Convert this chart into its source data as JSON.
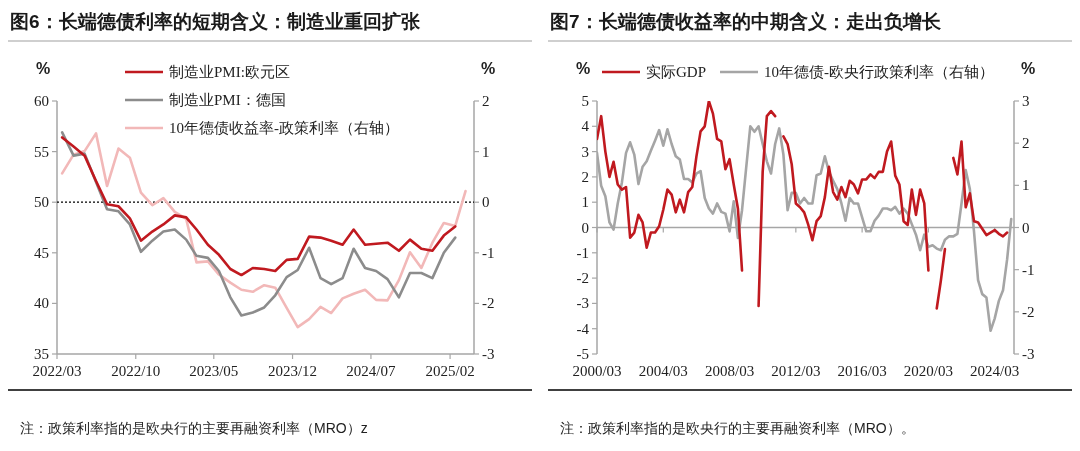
{
  "chart_data": [
    {
      "type": "line",
      "title": "图6：长端德债利率的短期含义：制造业重回扩张",
      "ylabel": "%",
      "y2label": "%",
      "legend": "top",
      "x": [
        "2022-03-15",
        "2022-04-15",
        "2022-05-15",
        "2022-06-15",
        "2022-07-15",
        "2022-08-15",
        "2022-09-15",
        "2022-10-15",
        "2022-11-15",
        "2022-12-15",
        "2023-01-15",
        "2023-02-15",
        "2023-03-15",
        "2023-04-15",
        "2023-05-15",
        "2023-06-15",
        "2023-07-15",
        "2023-08-15",
        "2023-09-15",
        "2023-10-15",
        "2023-11-15",
        "2023-12-15",
        "2024-01-15",
        "2024-02-15",
        "2024-03-15",
        "2024-04-15",
        "2024-05-15",
        "2024-06-15",
        "2024-07-15",
        "2024-08-15",
        "2024-09-15",
        "2024-10-15",
        "2024-11-15",
        "2024-12-15",
        "2025-01-15",
        "2025-02-15",
        "2025-03-15"
      ],
      "xlim": [
        "2022-03-01",
        "2025-04-07"
      ],
      "xticks": [
        {
          "value": "2022-03-01",
          "label": "2022/03"
        },
        {
          "value": "2022-10-01",
          "label": "2022/10"
        },
        {
          "value": "2023-05-01",
          "label": "2023/05"
        },
        {
          "value": "2023-12-01",
          "label": "2023/12"
        },
        {
          "value": "2024-07-01",
          "label": "2024/07"
        },
        {
          "value": "2025-02-01",
          "label": "2025/02"
        }
      ],
      "ylim": [
        35,
        60
      ],
      "yticks": [
        35,
        40,
        45,
        50,
        55,
        60
      ],
      "y2lim": [
        -3,
        2
      ],
      "y2ticks": [
        {
          "value": -3,
          "label": "-3"
        },
        {
          "value": -2,
          "label": "-2"
        },
        {
          "value": -1,
          "label": "-1"
        },
        0,
        1,
        2
      ],
      "series": [
        {
          "name": "制造业PMI:欧元区",
          "color": "#c0191f",
          "values": [
            56.4,
            55.5,
            54.6,
            52.1,
            49.8,
            49.6,
            48.4,
            46.2,
            47.1,
            47.8,
            48.7,
            48.5,
            47.3,
            45.8,
            44.8,
            43.4,
            42.8,
            43.5,
            43.4,
            43.2,
            44.3,
            44.4,
            46.6,
            46.5,
            46.2,
            45.8,
            47.3,
            45.8,
            45.9,
            46.0,
            45.2,
            46.3,
            45.4,
            45.2,
            46.7,
            47.6,
            null
          ]
        },
        {
          "name": "制造业PMI：德国",
          "color": "#8c8c8c",
          "values": [
            56.9,
            54.6,
            54.8,
            52.0,
            49.3,
            49.1,
            47.8,
            45.1,
            46.2,
            47.1,
            47.3,
            46.3,
            44.7,
            44.5,
            43.2,
            40.6,
            38.8,
            39.1,
            39.6,
            40.8,
            42.6,
            43.3,
            45.5,
            42.5,
            41.9,
            42.5,
            45.4,
            43.5,
            43.2,
            42.4,
            40.6,
            43.0,
            43.0,
            42.5,
            45.0,
            46.5,
            null
          ]
        },
        {
          "name": "10年德债收益率-政策利率（右轴）",
          "color": "#f2b8b8",
          "axis": "y2",
          "values": [
            0.57,
            0.94,
            1.01,
            1.36,
            0.32,
            1.06,
            0.88,
            0.19,
            -0.06,
            0.08,
            -0.19,
            -0.33,
            -1.19,
            -1.17,
            -1.43,
            -1.59,
            -1.73,
            -1.77,
            -1.64,
            -1.69,
            -2.09,
            -2.47,
            -2.31,
            -2.07,
            -2.19,
            -1.9,
            -1.81,
            -1.73,
            -1.93,
            -1.94,
            -1.54,
            -0.99,
            -1.3,
            -0.8,
            -0.41,
            -0.47,
            0.22
          ]
        }
      ],
      "ref_lines": [
        {
          "axis": "y2",
          "value": 0,
          "color": "#000000",
          "line_style": "dotted"
        }
      ],
      "annotations": [
        "注：政策利率指的是欧央行的主要再融资利率（MRO）z"
      ]
    },
    {
      "type": "line",
      "title": "图7：长端德债收益率的中期含义：走出负增长",
      "ylabel": "%",
      "y2label": "%",
      "legend": "top",
      "x": [
        "2000-03",
        "2000-06",
        "2000-09",
        "2000-12",
        "2001-03",
        "2001-06",
        "2001-09",
        "2001-12",
        "2002-03",
        "2002-06",
        "2002-09",
        "2002-12",
        "2003-03",
        "2003-06",
        "2003-09",
        "2003-12",
        "2004-03",
        "2004-06",
        "2004-09",
        "2004-12",
        "2005-03",
        "2005-06",
        "2005-09",
        "2005-12",
        "2006-03",
        "2006-06",
        "2006-09",
        "2006-12",
        "2007-03",
        "2007-06",
        "2007-09",
        "2007-12",
        "2008-03",
        "2008-06",
        "2008-09",
        "2008-12",
        "2009-03",
        "2009-06",
        "2009-09",
        "2009-12",
        "2010-03",
        "2010-06",
        "2010-09",
        "2010-12",
        "2011-03",
        "2011-06",
        "2011-09",
        "2011-12",
        "2012-03",
        "2012-06",
        "2012-09",
        "2012-12",
        "2013-03",
        "2013-06",
        "2013-09",
        "2013-12",
        "2014-03",
        "2014-06",
        "2014-09",
        "2014-12",
        "2015-03",
        "2015-06",
        "2015-09",
        "2015-12",
        "2016-03",
        "2016-06",
        "2016-09",
        "2016-12",
        "2017-03",
        "2017-06",
        "2017-09",
        "2017-12",
        "2018-03",
        "2018-06",
        "2018-09",
        "2018-12",
        "2019-03",
        "2019-06",
        "2019-09",
        "2019-12",
        "2020-03",
        "2020-06",
        "2020-09",
        "2020-12",
        "2021-03",
        "2021-06",
        "2021-09",
        "2021-12",
        "2022-03",
        "2022-06",
        "2022-09",
        "2022-12",
        "2023-03",
        "2023-06",
        "2023-09",
        "2023-12",
        "2024-03",
        "2024-06",
        "2024-09",
        "2024-12",
        "2025-03"
      ],
      "xlim": [
        "2000-03",
        "2025-05"
      ],
      "xticks": [
        {
          "value": "2000-03",
          "label": "2000/03"
        },
        {
          "value": "2004-03",
          "label": "2004/03"
        },
        {
          "value": "2008-03",
          "label": "2008/03"
        },
        {
          "value": "2012-03",
          "label": "2012/03"
        },
        {
          "value": "2016-03",
          "label": "2016/03"
        },
        {
          "value": "2020-03",
          "label": "2020/03"
        },
        {
          "value": "2024-03",
          "label": "2024/03"
        }
      ],
      "ylim": [
        -5,
        5
      ],
      "yticks": [
        {
          "value": -5,
          "label": "-5"
        },
        {
          "value": -4,
          "label": "-4"
        },
        {
          "value": -3,
          "label": "-3"
        },
        {
          "value": -2,
          "label": "-2"
        },
        {
          "value": -1,
          "label": "-1"
        },
        0,
        1,
        2,
        3,
        4,
        5
      ],
      "y2lim": [
        -3,
        3
      ],
      "y2ticks": [
        {
          "value": -3,
          "label": "-3"
        },
        {
          "value": -2,
          "label": "-2"
        },
        {
          "value": -1,
          "label": "-1"
        },
        0,
        1,
        2,
        3
      ],
      "series": [
        {
          "name": "实际GDP",
          "color": "#c0191f",
          "values": [
            3.5,
            4.4,
            3.0,
            2.0,
            2.6,
            1.7,
            1.5,
            1.6,
            -0.4,
            -0.2,
            0.5,
            0.2,
            -0.8,
            -0.2,
            -0.2,
            0.05,
            0.7,
            1.5,
            1.3,
            0.6,
            1.1,
            0.6,
            1.4,
            1.6,
            2.8,
            3.8,
            4.0,
            5.0,
            4.5,
            3.5,
            3.4,
            2.3,
            2.7,
            1.7,
            0.75,
            -1.7,
            null,
            null,
            null,
            -3.1,
            2.2,
            4.4,
            4.6,
            4.4,
            null,
            3.6,
            3.3,
            2.5,
            0.95,
            0.8,
            0.6,
            0.1,
            -0.5,
            0.25,
            0.45,
            1.2,
            2.4,
            1.4,
            1.1,
            1.6,
            1.2,
            1.85,
            1.7,
            1.35,
            1.9,
            1.9,
            2.1,
            1.95,
            2.2,
            2.2,
            3.0,
            3.4,
            2.05,
            1.7,
            0.25,
            0.1,
            1.5,
            0.5,
            1.5,
            0.95,
            -1.7,
            null,
            -3.2,
            -2.1,
            -0.85,
            null,
            2.75,
            2.1,
            3.4,
            0.8,
            1.35,
            0.25,
            0.2,
            -0.05,
            -0.3,
            -0.2,
            -0.1,
            -0.25,
            -0.35,
            -0.2,
            null
          ]
        },
        {
          "name": "10年德债-欧央行政策利率（右轴）",
          "color": "#a5a5a5",
          "axis": "y2",
          "values": [
            1.77,
            0.99,
            0.74,
            0.12,
            -0.05,
            0.57,
            1.07,
            1.77,
            2.02,
            1.73,
            1.03,
            1.44,
            1.57,
            1.82,
            2.06,
            2.31,
            1.94,
            2.33,
            1.98,
            1.69,
            1.61,
            1.15,
            1.15,
            1.07,
            1.28,
            1.34,
            0.7,
            0.45,
            0.33,
            0.57,
            0.37,
            0.33,
            -0.09,
            0.62,
            -0.25,
            0.41,
            1.4,
            2.4,
            2.27,
            2.4,
            1.98,
            1.57,
            1.28,
            1.98,
            2.35,
            1.73,
            0.41,
            0.82,
            0.82,
            0.57,
            0.7,
            0.57,
            0.57,
            1.24,
            1.28,
            1.69,
            1.32,
            1.11,
            0.91,
            0.57,
            0.16,
            0.7,
            0.57,
            0.57,
            0.24,
            -0.09,
            -0.09,
            0.16,
            0.28,
            0.45,
            0.45,
            0.41,
            0.49,
            0.33,
            0.45,
            0.33,
            0.08,
            -0.17,
            -0.54,
            -0.17,
            -0.46,
            -0.42,
            -0.5,
            -0.54,
            -0.29,
            -0.21,
            -0.21,
            -0.15,
            0.57,
            1.36,
            0.91,
            -0.09,
            -1.25,
            -1.58,
            -1.66,
            -2.45,
            -2.16,
            -1.74,
            -1.49,
            -0.75,
            0.2
          ]
        }
      ],
      "annotations": [
        "注：政策利率指的是欧央行的主要再融资利率（MRO）。"
      ]
    }
  ]
}
